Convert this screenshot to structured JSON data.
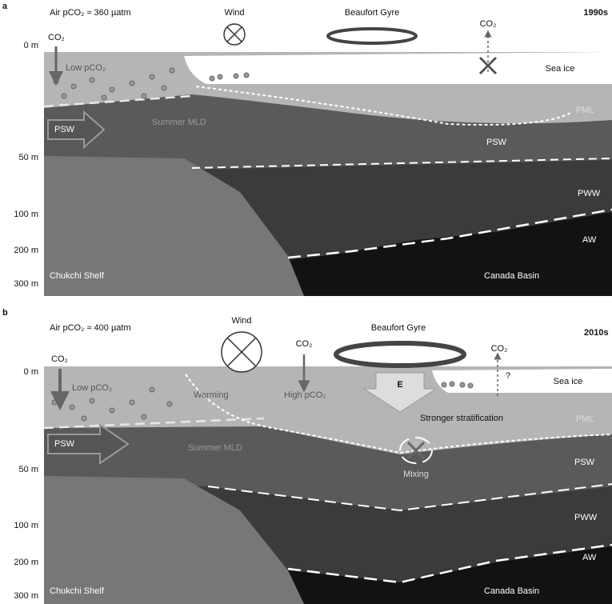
{
  "panels": [
    {
      "label": "a",
      "air_pco2": "Air pCO₂ ≈ 360 µatm",
      "decade": "1990s",
      "wind": "Wind",
      "gyre": "Beaufort Gyre",
      "co2_left": "CO₂",
      "co2_right": "CO₂",
      "low_pco2": "Low pCO₂",
      "sea_ice": "Sea ice",
      "pml": "PML",
      "psw_arrow": "PSW",
      "summer_mld": "Summer MLD",
      "psw": "PSW",
      "pww": "PWW",
      "aw": "AW",
      "shelf": "Chukchi Shelf",
      "basin": "Canada Basin",
      "depths": [
        "0 m",
        "50 m",
        "100 m",
        "200 m",
        "300 m"
      ]
    },
    {
      "label": "b",
      "air_pco2": "Air pCO₂ ≈ 400 µatm",
      "decade": "2010s",
      "wind": "Wind",
      "gyre": "Beaufort Gyre",
      "co2_left": "CO₂",
      "co2_mid": "CO₂",
      "co2_right": "CO₂",
      "low_pco2": "Low pCO₂",
      "warming": "Warming",
      "high_pco2": "High pCO₂",
      "ekman": "E",
      "question": "?",
      "sea_ice": "Sea ice",
      "stratification": "Stronger stratification",
      "pml": "PML",
      "psw_arrow": "PSW",
      "summer_mld": "Summer MLD",
      "mixing": "Mixing",
      "psw": "PSW",
      "pww": "PWW",
      "aw": "AW",
      "shelf": "Chukchi Shelf",
      "basin": "Canada Basin",
      "depths": [
        "0 m",
        "50 m",
        "100 m",
        "200 m",
        "300 m"
      ]
    }
  ]
}
